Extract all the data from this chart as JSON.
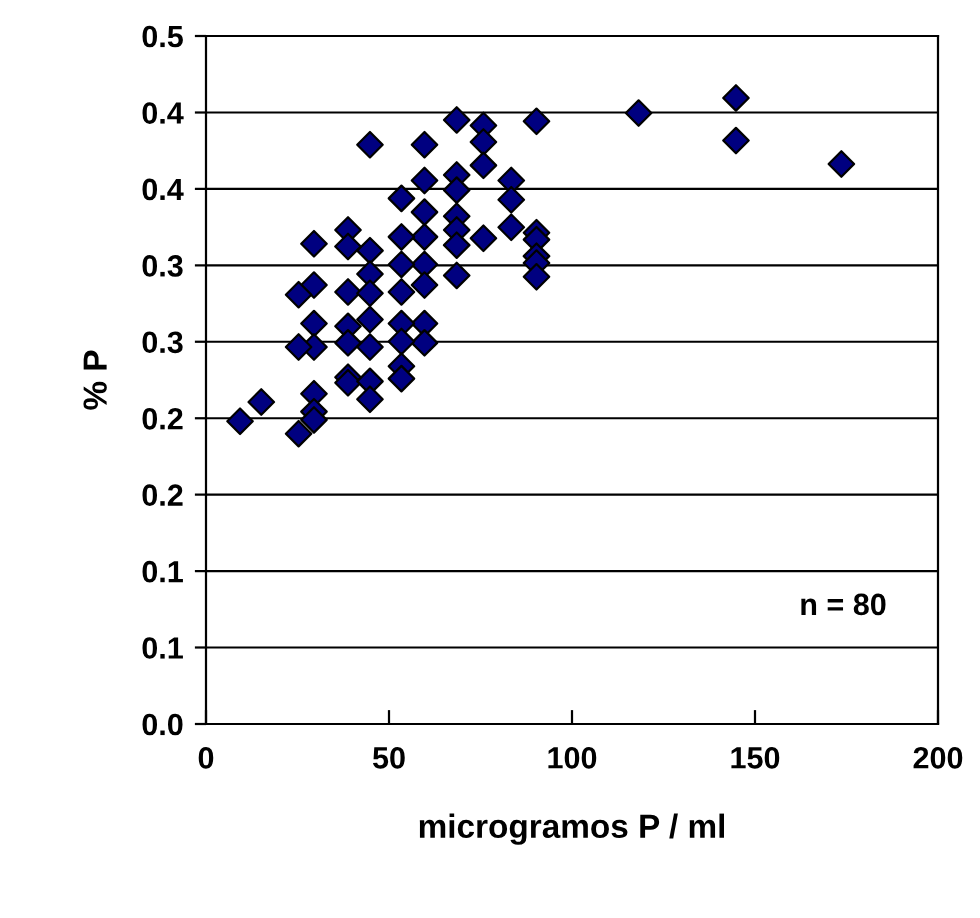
{
  "chart_data": {
    "type": "scatter",
    "xlabel": "microgramos P / ml",
    "ylabel": "% P",
    "annotations": [
      "n = 80"
    ],
    "x": [
      68.5,
      75.8,
      75.8,
      90.3,
      118.2,
      144.8,
      144.8,
      173.6,
      44.8,
      59.7,
      75.8,
      59.7,
      68.5,
      68.5,
      83.4,
      83.4,
      53.4,
      59.7,
      68.5,
      68.5,
      75.8,
      83.4,
      90.3,
      90.3,
      90.3,
      90.3,
      90.3,
      68.5,
      68.5,
      59.7,
      59.7,
      59.7,
      59.7,
      59.7,
      53.4,
      53.4,
      53.4,
      53.4,
      53.4,
      38.8,
      38.8,
      38.8,
      38.8,
      38.8,
      44.8,
      44.8,
      44.8,
      44.8,
      44.8,
      29.5,
      29.5,
      29.5,
      29.5,
      25.3,
      25.3,
      29.5,
      29.5,
      29.5,
      25.3,
      9.3,
      15.1,
      38.8,
      38.8,
      44.8,
      44.8,
      53.4,
      53.4
    ],
    "series": [
      {
        "color": "#000080",
        "values": [
          0.439,
          0.435,
          0.423,
          0.438,
          0.444,
          0.455,
          0.424,
          0.407,
          0.421,
          0.421,
          0.406,
          0.395,
          0.399,
          0.388,
          0.395,
          0.381,
          0.382,
          0.372,
          0.369,
          0.359,
          0.353,
          0.361,
          0.357,
          0.352,
          0.34,
          0.335,
          0.325,
          0.348,
          0.326,
          0.354,
          0.334,
          0.319,
          0.291,
          0.277,
          0.354,
          0.334,
          0.314,
          0.291,
          0.278,
          0.359,
          0.347,
          0.314,
          0.289,
          0.277,
          0.344,
          0.327,
          0.313,
          0.294,
          0.274,
          0.349,
          0.319,
          0.291,
          0.274,
          0.312,
          0.274,
          0.24,
          0.227,
          0.221,
          0.211,
          0.22,
          0.234,
          0.252,
          0.248,
          0.249,
          0.236,
          0.26,
          0.251
        ]
      }
    ],
    "marker": "diamond",
    "grid": "y",
    "xlim": [
      0,
      200
    ],
    "xticks": [
      0,
      50,
      100,
      150,
      200
    ],
    "ylim": [
      0,
      0.5
    ],
    "yticks": [
      {
        "value": 0,
        "label": "0.0"
      },
      {
        "value": 0.0556,
        "label": "0.1"
      },
      {
        "value": 0.1111,
        "label": "0.1"
      },
      {
        "value": 0.1667,
        "label": "0.2"
      },
      {
        "value": 0.2222,
        "label": "0.2"
      },
      {
        "value": 0.2778,
        "label": "0.3"
      },
      {
        "value": 0.3333,
        "label": "0.3"
      },
      {
        "value": 0.3889,
        "label": "0.4"
      },
      {
        "value": 0.4444,
        "label": "0.4"
      },
      {
        "value": 0.5,
        "label": "0.5"
      }
    ]
  }
}
